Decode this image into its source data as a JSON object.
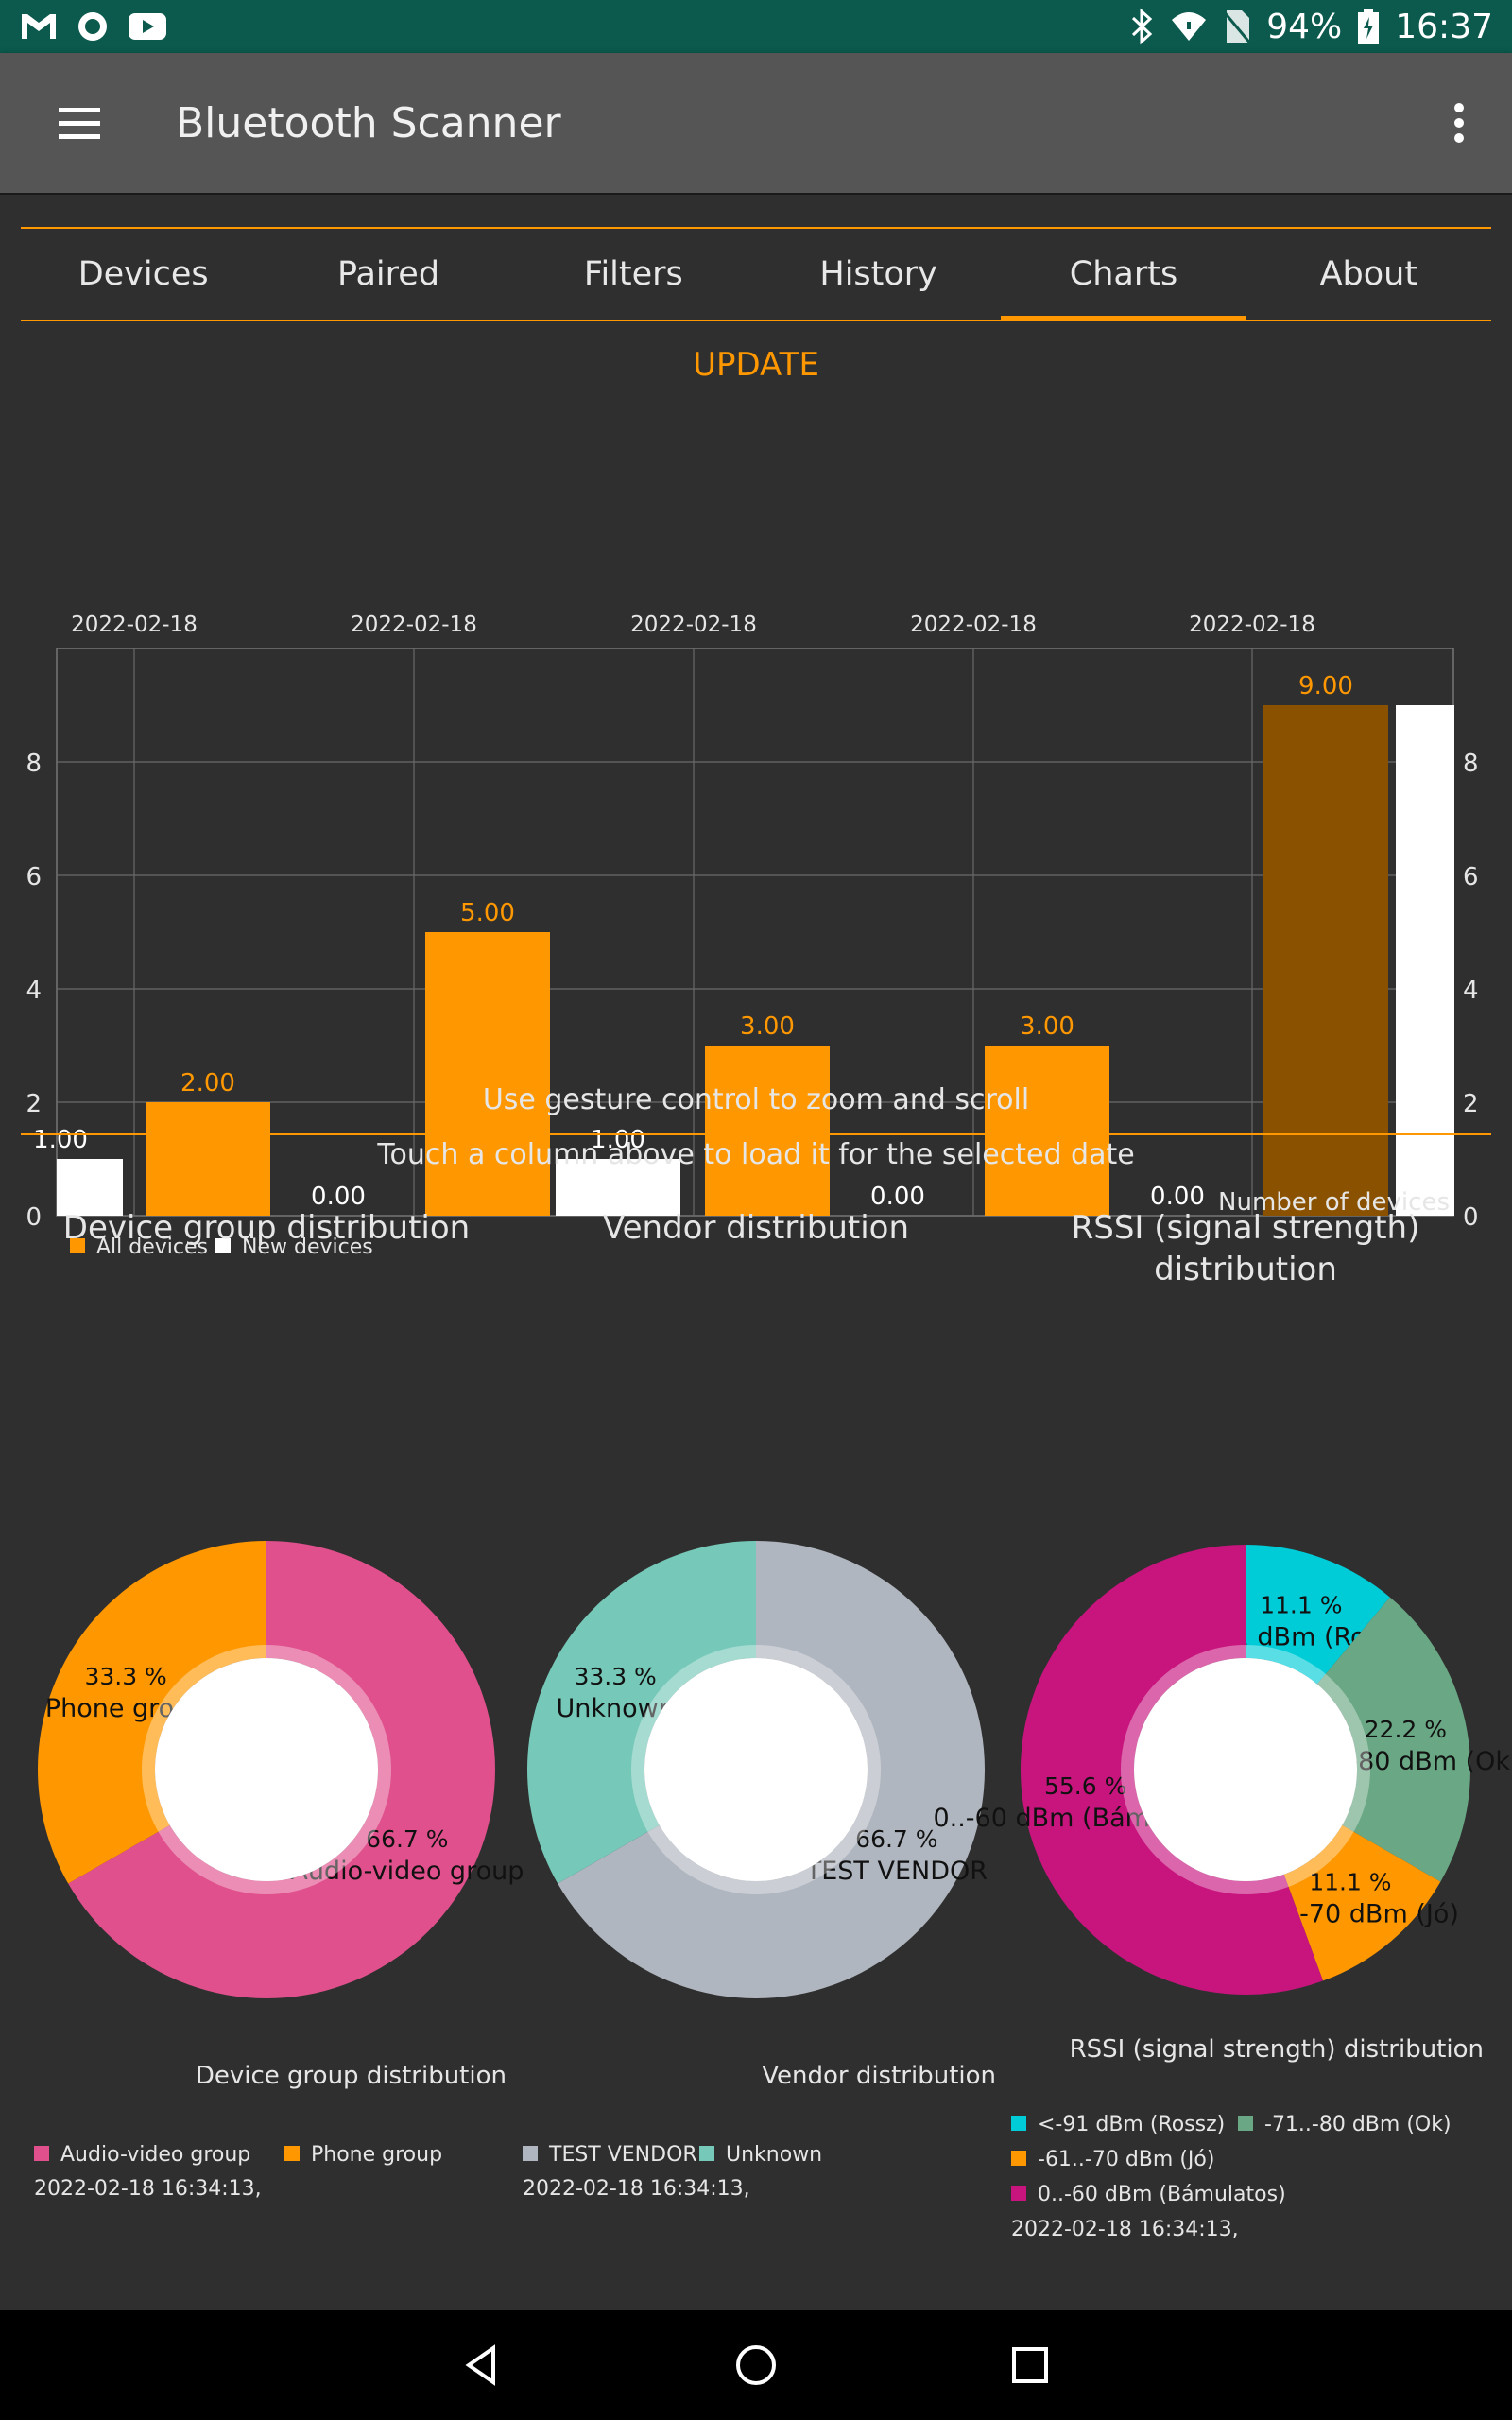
{
  "statusbar": {
    "battery": "94%",
    "time": "16:37"
  },
  "appbar": {
    "title": "Bluetooth Scanner"
  },
  "tabs": [
    {
      "label": "Devices"
    },
    {
      "label": "Paired"
    },
    {
      "label": "Filters"
    },
    {
      "label": "History"
    },
    {
      "label": "Charts"
    },
    {
      "label": "About"
    }
  ],
  "active_tab": "Charts",
  "update_label": "UPDATE",
  "hint_zoom": "Use gesture control to zoom and scroll",
  "hint_touch": "Touch a column above to load it for the selected date",
  "colors": {
    "accent": "#ff9800",
    "all_devices": "#ff9800",
    "new_devices": "#ffffff",
    "highlight": "#8a5200",
    "pink": "#e0508c",
    "gray": "#b0b6bf",
    "teal": "#76c8b8",
    "cyan": "#00ccd8",
    "green": "#6aa885",
    "magenta": "#c8157e"
  },
  "chart_data": [
    {
      "type": "bar",
      "categories": [
        "2022-02-18",
        "2022-02-18",
        "2022-02-18",
        "2022-02-18",
        "2022-02-18"
      ],
      "series": [
        {
          "name": "All devices",
          "values": [
            2,
            5,
            3,
            3,
            9
          ]
        },
        {
          "name": "New devices",
          "values": [
            0,
            1,
            0,
            0,
            9
          ]
        }
      ],
      "first_partial_new": 1,
      "value_labels": {
        "partial_new": "1.00",
        "all": [
          "2.00",
          "5.00",
          "3.00",
          "3.00",
          "9.00"
        ],
        "new": [
          "0.00",
          "1.00",
          "0.00",
          "0.00",
          ""
        ]
      },
      "yticks": [
        "0",
        "2",
        "4",
        "6",
        "8"
      ],
      "ylim": [
        0,
        10
      ],
      "highlight_label": "Number of devices",
      "legend": [
        "All devices",
        "New devices"
      ]
    },
    {
      "type": "pie",
      "title": "Device group distribution",
      "description": "Device group distribution",
      "slices": [
        {
          "label": "Audio-video group",
          "value": 66.7,
          "pct": "66.7 %",
          "color": "#e0508c"
        },
        {
          "label": "Phone group",
          "value": 33.3,
          "pct": "33.3 %",
          "color": "#ff9800"
        }
      ],
      "timestamp": "2022-02-18 16:34:13,"
    },
    {
      "type": "pie",
      "title": "Vendor distribution",
      "description": "Vendor distribution",
      "slices": [
        {
          "label": "TEST VENDOR",
          "value": 66.7,
          "pct": "66.7 %",
          "color": "#b0b6bf"
        },
        {
          "label": "Unknown",
          "value": 33.3,
          "pct": "33.3 %",
          "color": "#76c8b8"
        }
      ],
      "timestamp": "2022-02-18 16:34:13,"
    },
    {
      "type": "pie",
      "title_lines": [
        "RSSI (signal strength)",
        "distribution"
      ],
      "description": "RSSI (signal strength) distribution",
      "slices": [
        {
          "label": "<-91 dBm (Rossz)",
          "value": 11.1,
          "pct": "11.1 %",
          "color": "#00ccd8"
        },
        {
          "label": "-71..-80 dBm (Ok)",
          "value": 22.2,
          "pct": "22.2 %",
          "color": "#6aa885"
        },
        {
          "label": "-61..-70 dBm (Jó)",
          "value": 11.1,
          "pct": "11.1 %",
          "color": "#ff9800"
        },
        {
          "label": "0..-60 dBm (Bámulatos)",
          "value": 55.6,
          "pct": "55.6 %",
          "color": "#c8157e"
        }
      ],
      "timestamp": "2022-02-18 16:34:13,"
    }
  ]
}
